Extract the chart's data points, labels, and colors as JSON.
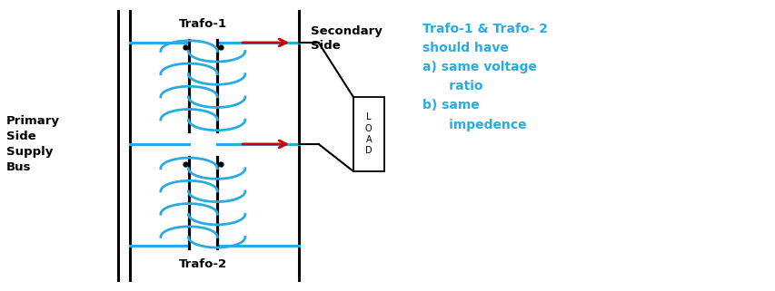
{
  "bg_color": "#ffffff",
  "cyan_color": "#29abe2",
  "black_color": "#000000",
  "red_color": "#cc0000",
  "text_primary_side": "Primary\nSide\nSupply\nBus",
  "text_secondary_side": "Secondary\nSide",
  "text_trafo1": "Trafo-1",
  "text_trafo2": "Trafo-2",
  "text_load": "L\nO\nA\nD",
  "text_right": "Trafo-1 & Trafo- 2\nshould have\na) same voltage\n      ratio\nb) same\n      impedence",
  "figsize": [
    8.54,
    3.21
  ],
  "dpi": 100
}
